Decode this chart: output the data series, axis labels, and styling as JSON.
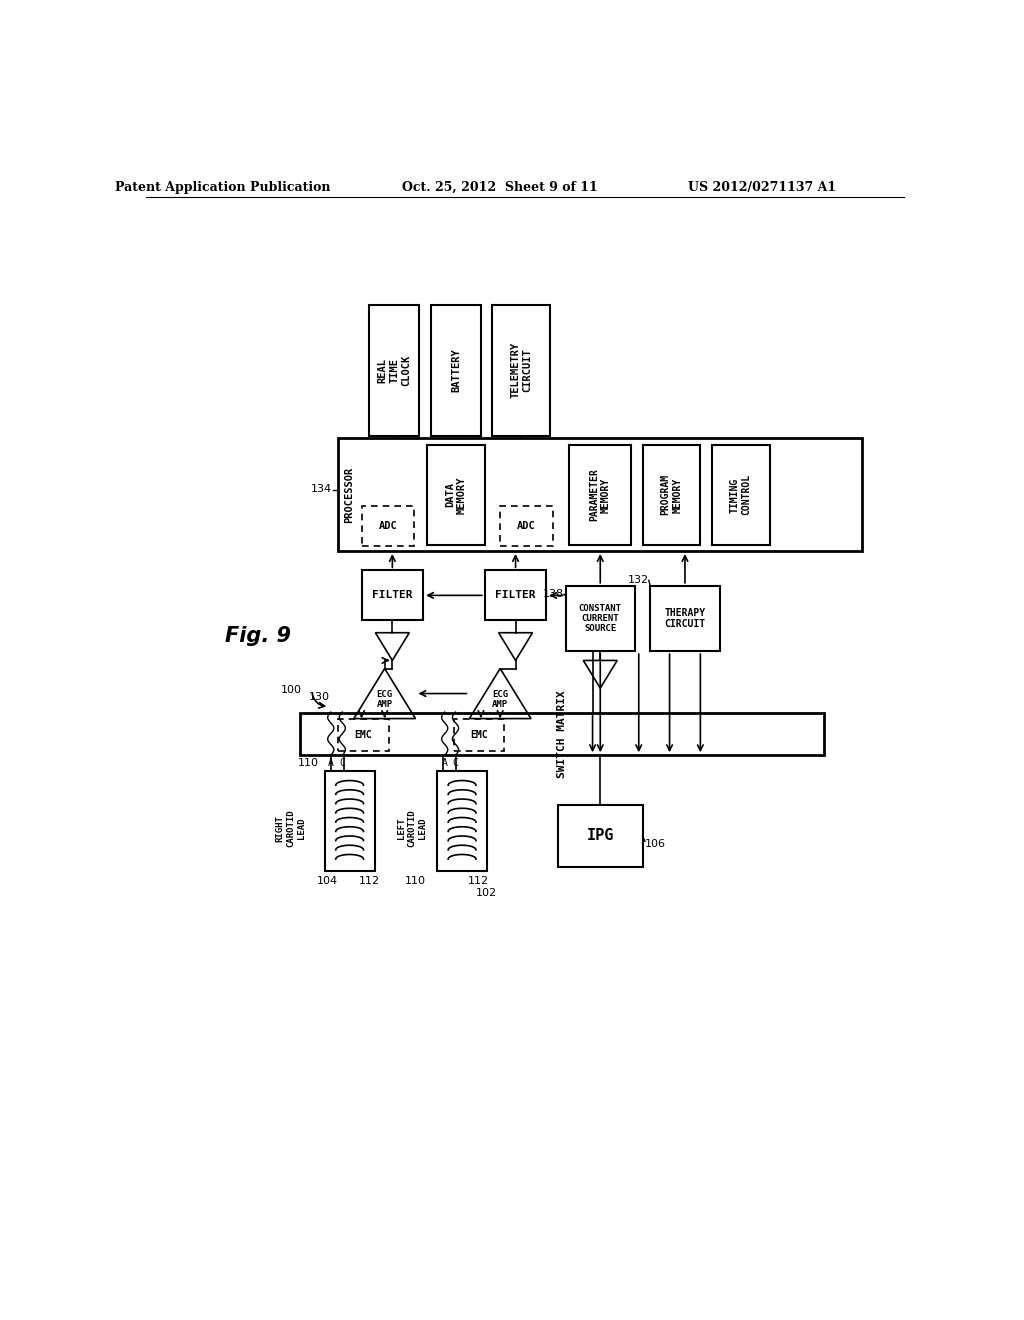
{
  "fig_width": 10.24,
  "fig_height": 13.2,
  "dpi": 100,
  "bg_color": "#ffffff",
  "header_left": "Patent Application Publication",
  "header_center": "Oct. 25, 2012  Sheet 9 of 11",
  "header_right": "US 2012/0271137 A1"
}
